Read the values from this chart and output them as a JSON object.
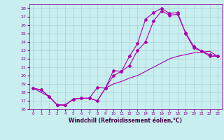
{
  "xlabel": "Windchill (Refroidissement éolien,°C)",
  "bg_color": "#c8eef0",
  "grid_color": "#b0d8d8",
  "line_color": "#aa00aa",
  "xlim": [
    -0.5,
    23.5
  ],
  "ylim": [
    16,
    28.5
  ],
  "yticks": [
    16,
    17,
    18,
    19,
    20,
    21,
    22,
    23,
    24,
    25,
    26,
    27,
    28
  ],
  "xticks": [
    0,
    1,
    2,
    3,
    4,
    5,
    6,
    7,
    8,
    9,
    10,
    11,
    12,
    13,
    14,
    15,
    16,
    17,
    18,
    19,
    20,
    21,
    22,
    23
  ],
  "curve1_x": [
    0,
    1,
    2,
    3,
    4,
    5,
    6,
    7,
    8,
    9,
    10,
    11,
    12,
    13,
    14,
    15,
    16,
    17,
    18,
    19,
    20,
    21,
    22,
    23
  ],
  "curve1_y": [
    18.5,
    18.3,
    17.5,
    16.5,
    16.5,
    17.2,
    17.3,
    17.3,
    18.6,
    18.5,
    20.6,
    20.5,
    22.3,
    23.8,
    26.7,
    27.5,
    28.0,
    27.4,
    27.5,
    25.0,
    23.3,
    22.9,
    22.3,
    22.3
  ],
  "curve2_x": [
    0,
    1,
    2,
    3,
    4,
    5,
    6,
    7,
    8,
    9,
    10,
    11,
    12,
    13,
    14,
    15,
    16,
    17,
    18,
    19,
    20,
    21,
    22,
    23
  ],
  "curve2_y": [
    18.5,
    18.3,
    17.5,
    16.5,
    16.5,
    17.2,
    17.3,
    17.3,
    17.0,
    18.5,
    20.0,
    20.5,
    21.2,
    23.0,
    24.0,
    26.5,
    27.7,
    27.2,
    27.3,
    25.1,
    23.5,
    22.9,
    22.5,
    22.3
  ],
  "curve3_x": [
    0,
    2,
    3,
    4,
    5,
    6,
    7,
    8,
    9,
    10,
    11,
    12,
    13,
    14,
    15,
    16,
    17,
    18,
    19,
    20,
    21,
    22,
    23
  ],
  "curve3_y": [
    18.5,
    17.5,
    16.5,
    16.5,
    17.2,
    17.3,
    17.3,
    17.0,
    18.5,
    19.0,
    19.3,
    19.7,
    20.0,
    20.5,
    21.0,
    21.5,
    22.0,
    22.3,
    22.5,
    22.7,
    22.8,
    22.9,
    22.3
  ]
}
